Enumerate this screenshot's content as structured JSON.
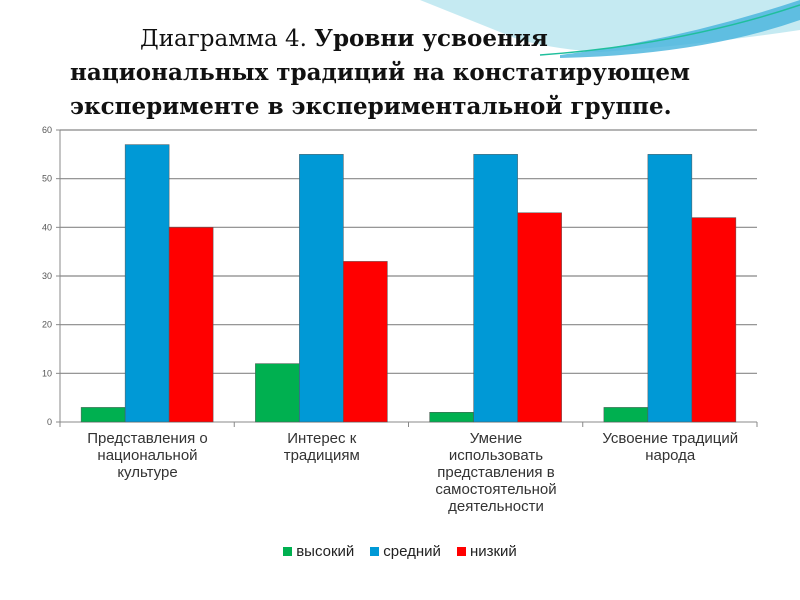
{
  "title": {
    "prefix": "Диаграмма 4.",
    "line1_bold": "Уровни усвоения",
    "line2": "национальных традиций на констатирующем",
    "line3": "эксперименте в экспериментальной группе."
  },
  "chart_data": {
    "type": "bar",
    "title": "Диаграмма 4. Уровни усвоения национальных традиций на констатирующем эксперименте в экспериментальной группе.",
    "categories": [
      "Представления о национальной культуре",
      "Интерес к традициям",
      "Умение использовать представления в самостоятельной деятельности",
      "Усвоение традиций народа"
    ],
    "category_lines": [
      [
        "Представления о",
        "национальной",
        "культуре"
      ],
      [
        "Интерес к",
        "традициям"
      ],
      [
        "Умение",
        "использовать",
        "представления в",
        "самостоятельной",
        "деятельности"
      ],
      [
        "Усвоение традиций",
        "народа"
      ]
    ],
    "series": [
      {
        "name": "высокий",
        "color": "#00b050",
        "values": [
          3,
          12,
          2,
          3
        ]
      },
      {
        "name": "средний",
        "color": "#0099d6",
        "values": [
          57,
          55,
          55,
          55
        ]
      },
      {
        "name": "низкий",
        "color": "#ff0000",
        "values": [
          40,
          33,
          43,
          42
        ]
      }
    ],
    "yticks": [
      0,
      10,
      20,
      30,
      40,
      50,
      60
    ],
    "ylim": [
      0,
      60
    ],
    "grid": true,
    "legend": "bottom",
    "xlabel": "",
    "ylabel": ""
  }
}
